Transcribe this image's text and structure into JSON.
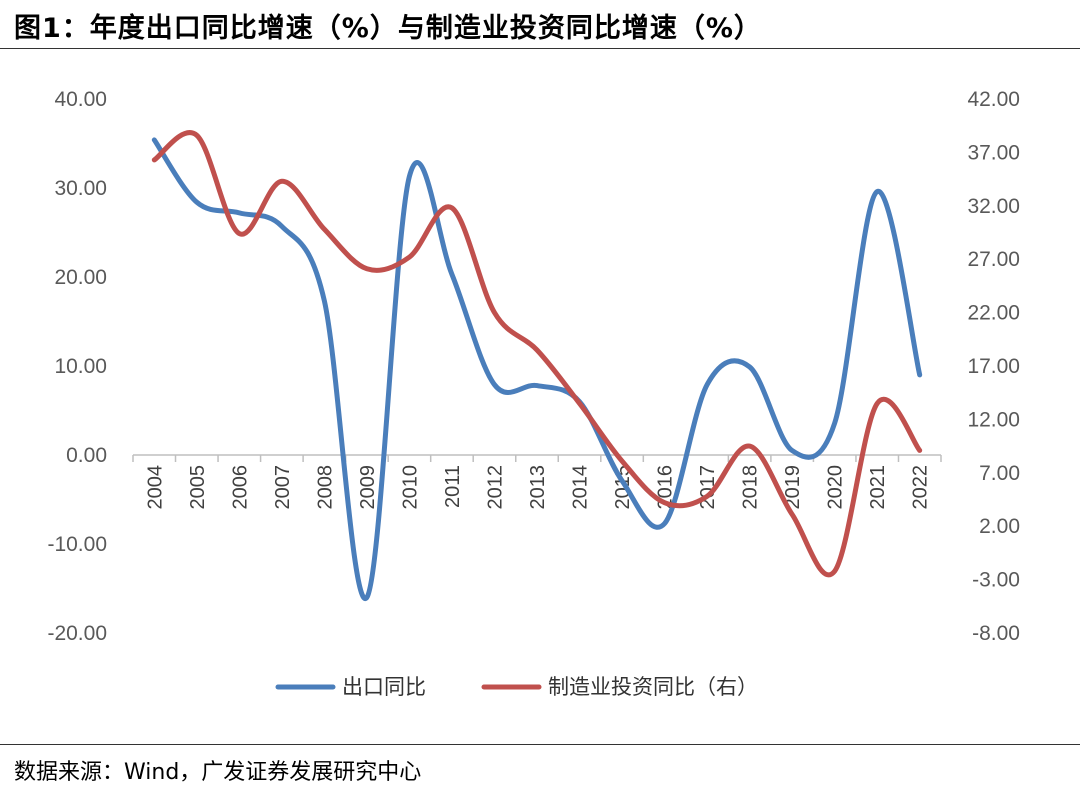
{
  "figure": {
    "title": "图1：年度出口同比增速（%）与制造业投资同比增速（%）",
    "source": "数据来源：Wind，广发证券发展研究中心"
  },
  "chart_data": {
    "type": "line",
    "title": "年度出口同比增速（%）与制造业投资同比增速（%）",
    "categories": [
      "2004",
      "2005",
      "2006",
      "2007",
      "2008",
      "2009",
      "2010",
      "2011",
      "2012",
      "2013",
      "2014",
      "2015",
      "2016",
      "2017",
      "2018",
      "2019",
      "2020",
      "2021",
      "2022"
    ],
    "series": [
      {
        "name": "出口同比",
        "axis": "left",
        "color": "#4a7ebb",
        "values": [
          35.4,
          28.4,
          27.2,
          25.7,
          17.3,
          -16.0,
          31.3,
          20.3,
          7.9,
          7.8,
          6.0,
          -2.9,
          -7.7,
          7.9,
          9.9,
          0.5,
          3.6,
          29.6,
          9.0
        ]
      },
      {
        "name": "制造业投资同比（右）",
        "axis": "right",
        "color": "#c0504d",
        "values": [
          36.3,
          38.6,
          29.4,
          34.3,
          29.8,
          26.1,
          27.2,
          31.8,
          22.0,
          18.5,
          13.5,
          8.1,
          4.2,
          4.8,
          9.5,
          3.1,
          -2.2,
          13.5,
          9.1
        ]
      }
    ],
    "y_left": {
      "min": -20,
      "max": 40,
      "ticks": [
        "40.00",
        "30.00",
        "20.00",
        "10.00",
        "0.00",
        "-10.00",
        "-20.00"
      ]
    },
    "y_right": {
      "min": -8,
      "max": 42,
      "ticks": [
        "42.00",
        "37.00",
        "32.00",
        "27.00",
        "22.00",
        "17.00",
        "12.00",
        "7.00",
        "2.00",
        "-3.00",
        "-8.00"
      ]
    },
    "legend": [
      "出口同比",
      "制造业投资同比（右）"
    ],
    "legend_position": "bottom",
    "grid": false
  }
}
